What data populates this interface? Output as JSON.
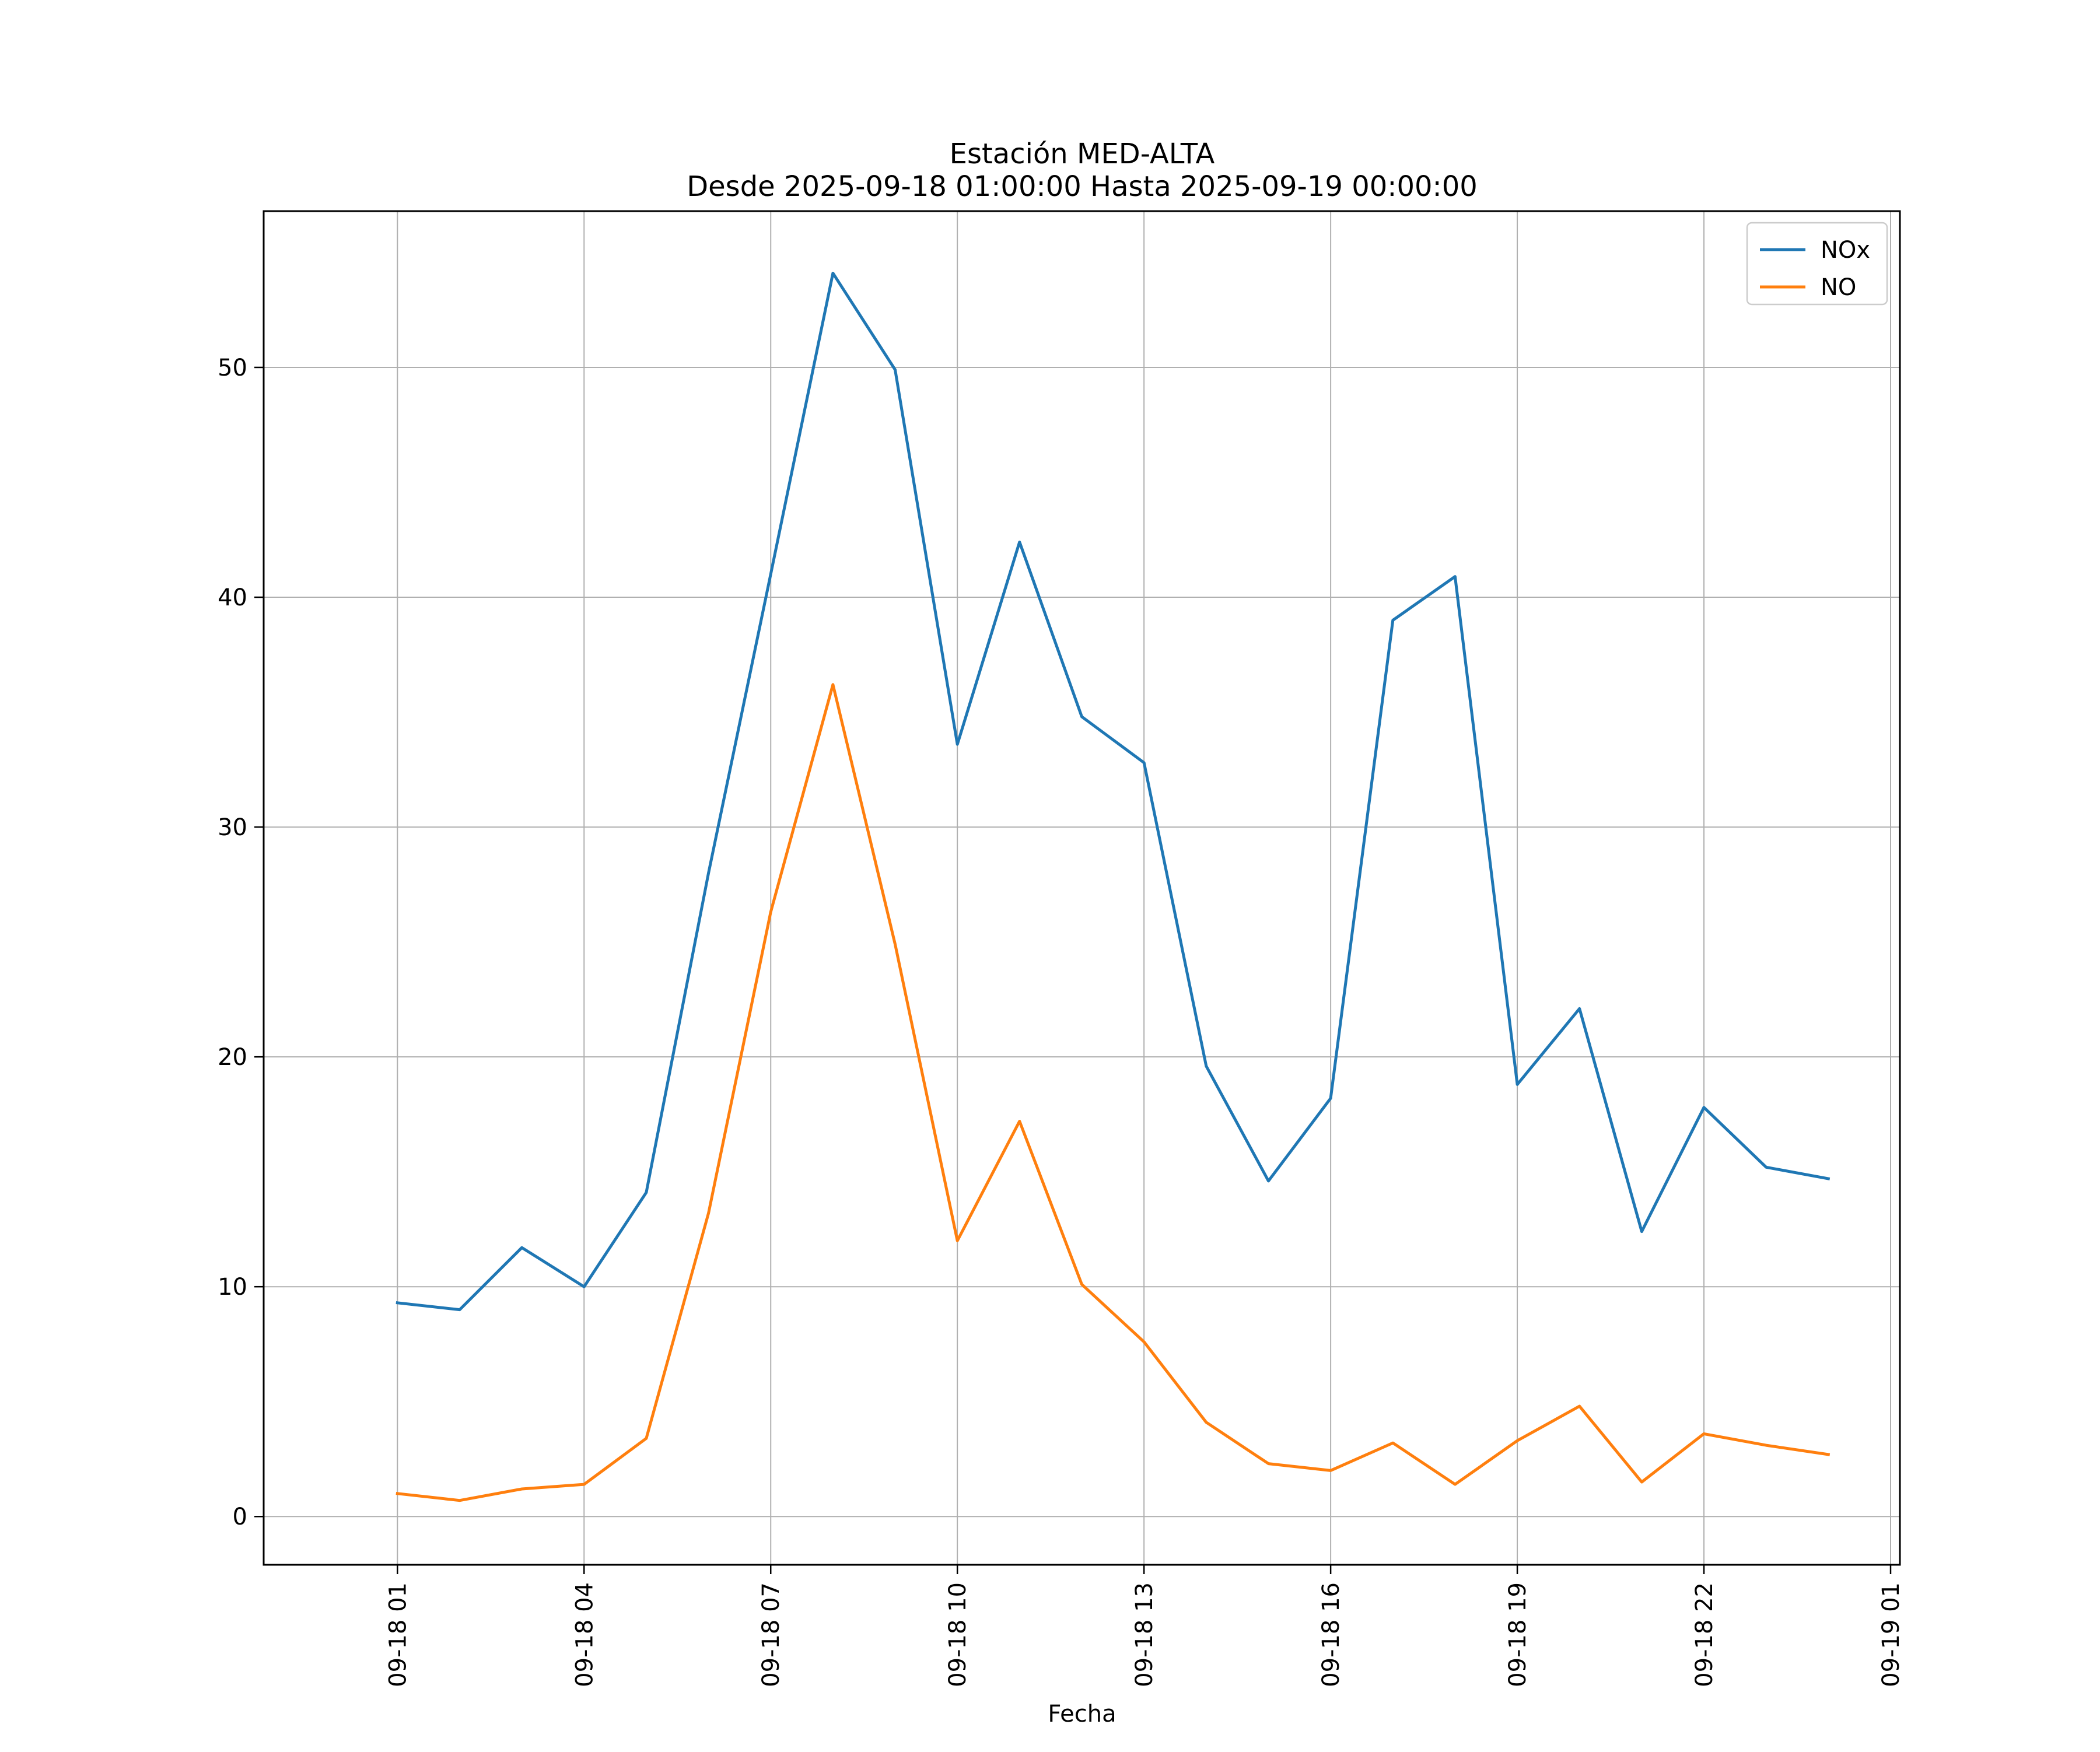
{
  "chart_data": {
    "type": "line",
    "title": "Estación MED-ALTA",
    "subtitle": "Desde 2025-09-18 01:00:00 Hasta 2025-09-19 00:00:00",
    "xlabel": "Fecha",
    "ylabel": "",
    "x": [
      "2025-09-18 01:00",
      "2025-09-18 02:00",
      "2025-09-18 03:00",
      "2025-09-18 04:00",
      "2025-09-18 05:00",
      "2025-09-18 06:00",
      "2025-09-18 07:00",
      "2025-09-18 08:00",
      "2025-09-18 09:00",
      "2025-09-18 10:00",
      "2025-09-18 11:00",
      "2025-09-18 12:00",
      "2025-09-18 13:00",
      "2025-09-18 14:00",
      "2025-09-18 15:00",
      "2025-09-18 16:00",
      "2025-09-18 17:00",
      "2025-09-18 18:00",
      "2025-09-18 19:00",
      "2025-09-18 20:00",
      "2025-09-18 21:00",
      "2025-09-18 22:00",
      "2025-09-18 23:00",
      "2025-09-19 00:00"
    ],
    "series": [
      {
        "name": "NOx",
        "color": "#1f77b4",
        "values": [
          9.3,
          9.0,
          11.7,
          10.0,
          14.1,
          28.0,
          41.0,
          54.1,
          49.9,
          33.6,
          42.4,
          34.8,
          32.8,
          19.6,
          14.6,
          18.2,
          39.0,
          40.9,
          18.8,
          22.1,
          12.4,
          17.8,
          15.2,
          14.7
        ]
      },
      {
        "name": "NO",
        "color": "#ff7f0e",
        "values": [
          1.0,
          0.7,
          1.2,
          1.4,
          3.4,
          13.2,
          26.3,
          36.2,
          24.9,
          12.0,
          17.2,
          10.1,
          7.6,
          4.1,
          2.3,
          2.0,
          3.2,
          1.4,
          3.3,
          4.8,
          1.5,
          3.6,
          3.1,
          2.7
        ]
      }
    ],
    "x_ticks": [
      "09-18 01",
      "09-18 04",
      "09-18 07",
      "09-18 10",
      "09-18 13",
      "09-18 16",
      "09-18 19",
      "09-18 22",
      "09-19 01"
    ],
    "y_ticks": [
      "0",
      "10",
      "20",
      "30",
      "40",
      "50"
    ],
    "xlim": [
      "2025-09-17 22:51",
      "2025-09-19 01:09"
    ],
    "ylim": [
      -2.1,
      56.8
    ],
    "grid": true,
    "legend": "top-right"
  }
}
